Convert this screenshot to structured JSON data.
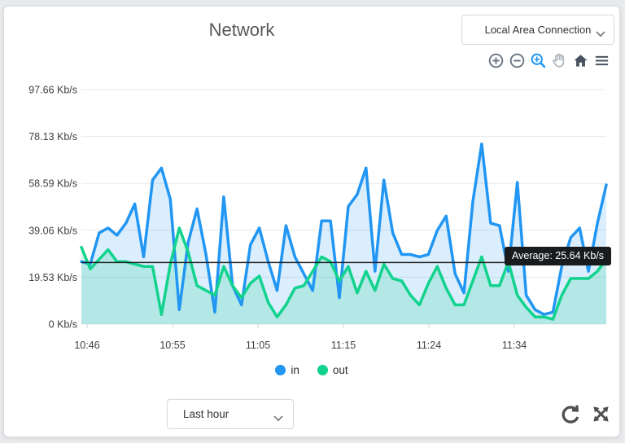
{
  "app": {
    "title": "Network"
  },
  "interface_select": {
    "value": "Local Area Connection"
  },
  "toolbar": {
    "icon_color": "#6b7684",
    "active_color": "#2196f3",
    "icons": [
      "zoom-in-icon",
      "zoom-out-icon",
      "box-zoom-icon",
      "pan-hand-icon",
      "home-icon",
      "menu-icon"
    ]
  },
  "chart_data": {
    "type": "area",
    "title": "Network",
    "unit": "Kb/s",
    "grid": "horizontal",
    "legend_position": "bottom",
    "ylim": [
      0,
      97.66
    ],
    "y_ticks": [
      {
        "value": 0,
        "label": "0 Kb/s"
      },
      {
        "value": 19.53,
        "label": "19.53 Kb/s"
      },
      {
        "value": 39.06,
        "label": "39.06 Kb/s"
      },
      {
        "value": 58.59,
        "label": "58.59 Kb/s"
      },
      {
        "value": 78.13,
        "label": "78.13 Kb/s"
      },
      {
        "value": 97.66,
        "label": "97.66 Kb/s"
      }
    ],
    "x_ticks": [
      "10:46",
      "10:55",
      "11:05",
      "11:15",
      "11:24",
      "11:34"
    ],
    "start_time": "10:45",
    "interval_seconds": 60,
    "series": [
      {
        "name": "in",
        "color": "#2196f3",
        "fill": "rgba(33,150,243,0.16)",
        "values": [
          26,
          25,
          38,
          40,
          37,
          42,
          50,
          28,
          60,
          65,
          52,
          6,
          34,
          48,
          29,
          5,
          53,
          16,
          8,
          33,
          40,
          26,
          14,
          41,
          28,
          21,
          14,
          43,
          43,
          11,
          49,
          54,
          65,
          22,
          60,
          38,
          29,
          29,
          28,
          29,
          39,
          45,
          21,
          13,
          51,
          75,
          42,
          41,
          22,
          59,
          12,
          6,
          4,
          5,
          24,
          36,
          40,
          22,
          42,
          58
        ]
      },
      {
        "name": "out",
        "color": "#12d38d",
        "fill": "rgba(18,211,141,0.20)",
        "values": [
          32,
          23,
          27,
          31,
          26,
          26,
          25,
          24,
          24,
          4,
          25,
          40,
          30,
          16,
          14,
          12,
          24,
          16,
          11,
          17,
          20,
          9,
          3,
          8,
          15,
          16,
          22,
          28,
          26,
          18,
          24,
          13,
          22,
          14,
          25,
          19,
          18,
          12,
          8,
          17,
          24,
          15,
          8,
          8,
          18,
          28,
          16,
          16,
          26,
          12,
          7,
          3,
          3,
          2,
          12,
          19,
          19,
          19,
          22,
          27
        ]
      }
    ],
    "average": {
      "value": 25.64,
      "label": "Average: 25.64 Kb/s"
    }
  },
  "legend": {
    "items": [
      {
        "label": "in",
        "color": "#2196f3"
      },
      {
        "label": "out",
        "color": "#12d38d"
      }
    ]
  },
  "footer": {
    "range_select": {
      "value": "Last hour"
    },
    "actions": [
      "refresh-icon",
      "expand-icon"
    ]
  }
}
